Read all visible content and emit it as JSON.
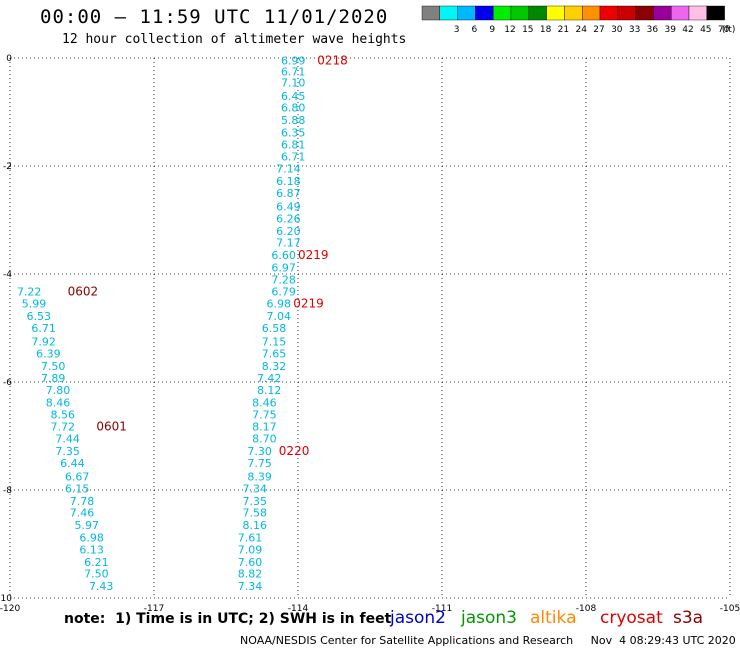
{
  "header": {
    "title": "00:00 – 11:59 UTC 11/01/2020",
    "subtitle": "12 hour collection of altimeter wave heights"
  },
  "color_scale": {
    "unit": "(ft)",
    "bins": [
      {
        "label": "",
        "color": "#808080"
      },
      {
        "label": "3",
        "color": "#00f5f5"
      },
      {
        "label": "6",
        "color": "#00b8ff"
      },
      {
        "label": "9",
        "color": "#0000ee"
      },
      {
        "label": "12",
        "color": "#00ee00"
      },
      {
        "label": "15",
        "color": "#00c800"
      },
      {
        "label": "18",
        "color": "#008800"
      },
      {
        "label": "21",
        "color": "#ffff00"
      },
      {
        "label": "24",
        "color": "#ffd000"
      },
      {
        "label": "27",
        "color": "#ff9000"
      },
      {
        "label": "30",
        "color": "#ee0000"
      },
      {
        "label": "33",
        "color": "#cc0000"
      },
      {
        "label": "36",
        "color": "#8b0000"
      },
      {
        "label": "39",
        "color": "#990099"
      },
      {
        "label": "42",
        "color": "#ee66ee"
      },
      {
        "label": "45",
        "color": "#ffc0e8"
      },
      {
        "label": "70",
        "color": "#000000"
      }
    ]
  },
  "footer": {
    "note": "note:  1) Time is in UTC; 2) SWH is in feet",
    "credit": "NOAA/NESDIS Center for Satellite Applications and Research     Nov  4 08:29:43 UTC 2020"
  },
  "satellites": [
    {
      "name": "jason2",
      "color": "#0000cc"
    },
    {
      "name": "jason3",
      "color": "#009900"
    },
    {
      "name": "altika",
      "color": "#ff8800"
    },
    {
      "name": "cryosat",
      "color": "#dd0000"
    },
    {
      "name": "s3a",
      "color": "#880000"
    }
  ],
  "chart_data": {
    "type": "scatter",
    "xlim": [
      -120,
      -105
    ],
    "ylim": [
      -10,
      0
    ],
    "xticks": [
      "-120",
      "-117",
      "-114",
      "-111",
      "-108",
      "-105"
    ],
    "yticks": [
      "0",
      "-2",
      "-4",
      "-6",
      "-8",
      "-10"
    ],
    "grid": true,
    "value_color": "#00b8e0",
    "tracks": [
      {
        "name": "track-0218-0220",
        "values": [
          {
            "lon": -114.1,
            "lat": -0.05,
            "v": "6.99"
          },
          {
            "lon": -114.1,
            "lat": -0.25,
            "v": "6.71"
          },
          {
            "lon": -114.1,
            "lat": -0.45,
            "v": "7.10"
          },
          {
            "lon": -114.1,
            "lat": -0.7,
            "v": "6.45"
          },
          {
            "lon": -114.1,
            "lat": -0.92,
            "v": "6.80"
          },
          {
            "lon": -114.1,
            "lat": -1.15,
            "v": "5.88"
          },
          {
            "lon": -114.1,
            "lat": -1.38,
            "v": "6.35"
          },
          {
            "lon": -114.1,
            "lat": -1.6,
            "v": "6.81"
          },
          {
            "lon": -114.1,
            "lat": -1.82,
            "v": "6.71"
          },
          {
            "lon": -114.2,
            "lat": -2.05,
            "v": "7.14"
          },
          {
            "lon": -114.2,
            "lat": -2.28,
            "v": "6.18"
          },
          {
            "lon": -114.2,
            "lat": -2.5,
            "v": "6.87"
          },
          {
            "lon": -114.2,
            "lat": -2.75,
            "v": "6.49"
          },
          {
            "lon": -114.2,
            "lat": -2.97,
            "v": "6.26"
          },
          {
            "lon": -114.2,
            "lat": -3.2,
            "v": "6.20"
          },
          {
            "lon": -114.2,
            "lat": -3.42,
            "v": "7.17"
          },
          {
            "lon": -114.3,
            "lat": -3.65,
            "v": "6.60"
          },
          {
            "lon": -114.3,
            "lat": -3.88,
            "v": "6.97"
          },
          {
            "lon": -114.3,
            "lat": -4.1,
            "v": "7.28"
          },
          {
            "lon": -114.3,
            "lat": -4.32,
            "v": "6.79"
          },
          {
            "lon": -114.4,
            "lat": -4.55,
            "v": "6.98"
          },
          {
            "lon": -114.4,
            "lat": -4.78,
            "v": "7.04"
          },
          {
            "lon": -114.5,
            "lat": -5.0,
            "v": "6.58"
          },
          {
            "lon": -114.5,
            "lat": -5.25,
            "v": "7.15"
          },
          {
            "lon": -114.5,
            "lat": -5.47,
            "v": "7.65"
          },
          {
            "lon": -114.5,
            "lat": -5.7,
            "v": "8.32"
          },
          {
            "lon": -114.6,
            "lat": -5.93,
            "v": "7.42"
          },
          {
            "lon": -114.6,
            "lat": -6.15,
            "v": "8.12"
          },
          {
            "lon": -114.7,
            "lat": -6.38,
            "v": "8.46"
          },
          {
            "lon": -114.7,
            "lat": -6.6,
            "v": "7.75"
          },
          {
            "lon": -114.7,
            "lat": -6.82,
            "v": "8.17"
          },
          {
            "lon": -114.7,
            "lat": -7.05,
            "v": "8.70"
          },
          {
            "lon": -114.8,
            "lat": -7.28,
            "v": "7.30"
          },
          {
            "lon": -114.8,
            "lat": -7.5,
            "v": "7.75"
          },
          {
            "lon": -114.8,
            "lat": -7.75,
            "v": "8.39"
          },
          {
            "lon": -114.9,
            "lat": -7.97,
            "v": "7.34"
          },
          {
            "lon": -114.9,
            "lat": -8.2,
            "v": "7.35"
          },
          {
            "lon": -114.9,
            "lat": -8.42,
            "v": "7.58"
          },
          {
            "lon": -114.9,
            "lat": -8.65,
            "v": "8.16"
          },
          {
            "lon": -115.0,
            "lat": -8.88,
            "v": "7.61"
          },
          {
            "lon": -115.0,
            "lat": -9.1,
            "v": "7.09"
          },
          {
            "lon": -115.0,
            "lat": -9.33,
            "v": "7.60"
          },
          {
            "lon": -115.0,
            "lat": -9.55,
            "v": "8.82"
          },
          {
            "lon": -115.0,
            "lat": -9.78,
            "v": "7.34"
          }
        ],
        "time_labels": [
          {
            "lon": -113.6,
            "lat": -0.05,
            "text": "0218",
            "color": "#dd0000"
          },
          {
            "lon": -114.0,
            "lat": -3.65,
            "text": "0219",
            "color": "#dd0000"
          },
          {
            "lon": -114.1,
            "lat": -4.55,
            "text": "0219",
            "color": "#dd0000"
          },
          {
            "lon": -114.4,
            "lat": -7.28,
            "text": "0220",
            "color": "#dd0000"
          }
        ]
      },
      {
        "name": "track-0602-0601",
        "values": [
          {
            "lon": -119.6,
            "lat": -4.32,
            "v": "7.22"
          },
          {
            "lon": -119.5,
            "lat": -4.55,
            "v": "5.99"
          },
          {
            "lon": -119.4,
            "lat": -4.78,
            "v": "6.53"
          },
          {
            "lon": -119.3,
            "lat": -5.0,
            "v": "6.71"
          },
          {
            "lon": -119.3,
            "lat": -5.25,
            "v": "7.92"
          },
          {
            "lon": -119.2,
            "lat": -5.47,
            "v": "6.39"
          },
          {
            "lon": -119.1,
            "lat": -5.7,
            "v": "7.50"
          },
          {
            "lon": -119.1,
            "lat": -5.93,
            "v": "7.89"
          },
          {
            "lon": -119.0,
            "lat": -6.15,
            "v": "7.80"
          },
          {
            "lon": -119.0,
            "lat": -6.38,
            "v": "8.46"
          },
          {
            "lon": -118.9,
            "lat": -6.6,
            "v": "8.56"
          },
          {
            "lon": -118.9,
            "lat": -6.82,
            "v": "7.72"
          },
          {
            "lon": -118.8,
            "lat": -7.05,
            "v": "7.44"
          },
          {
            "lon": -118.8,
            "lat": -7.28,
            "v": "7.35"
          },
          {
            "lon": -118.7,
            "lat": -7.5,
            "v": "6.44"
          },
          {
            "lon": -118.6,
            "lat": -7.75,
            "v": "6.67"
          },
          {
            "lon": -118.6,
            "lat": -7.97,
            "v": "6.15"
          },
          {
            "lon": -118.5,
            "lat": -8.2,
            "v": "7.78"
          },
          {
            "lon": -118.5,
            "lat": -8.42,
            "v": "7.46"
          },
          {
            "lon": -118.4,
            "lat": -8.65,
            "v": "5.97"
          },
          {
            "lon": -118.3,
            "lat": -8.88,
            "v": "6.98"
          },
          {
            "lon": -118.3,
            "lat": -9.1,
            "v": "6.13"
          },
          {
            "lon": -118.2,
            "lat": -9.33,
            "v": "6.21"
          },
          {
            "lon": -118.2,
            "lat": -9.55,
            "v": "7.50"
          },
          {
            "lon": -118.1,
            "lat": -9.78,
            "v": "7.43"
          }
        ],
        "time_labels": [
          {
            "lon": -118.8,
            "lat": -4.32,
            "text": "0602",
            "color": "#880000"
          },
          {
            "lon": -118.2,
            "lat": -6.82,
            "text": "0601",
            "color": "#880000"
          }
        ]
      }
    ]
  }
}
